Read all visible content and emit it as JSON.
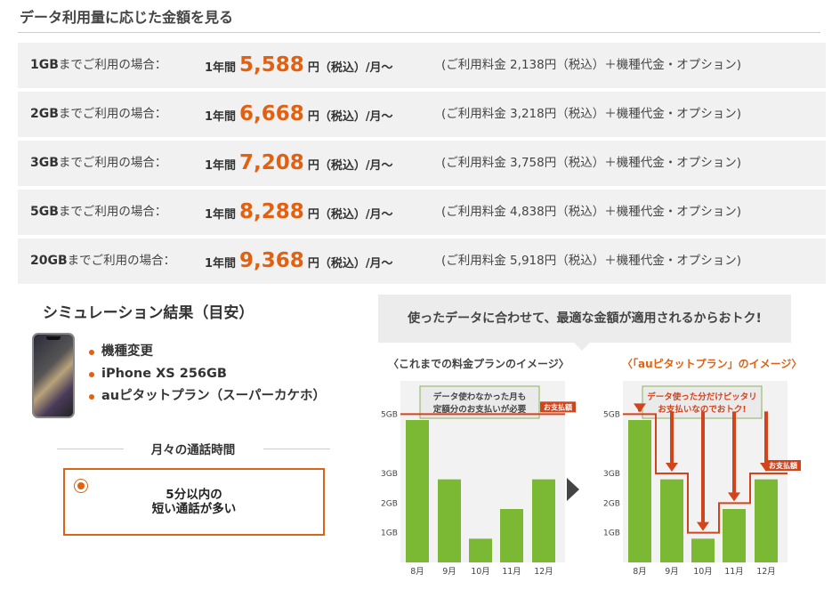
{
  "section_title": "データ利用量に応じた金額を見る",
  "price_rows": [
    {
      "gb": "1GB",
      "label_suffix": "までご利用の場合：",
      "year": "1年間",
      "amount": "5,588",
      "unit": "円（税込）/月〜",
      "detail": "(ご利用料金 2,138円（税込）＋機種代金・オプション)"
    },
    {
      "gb": "2GB",
      "label_suffix": "までご利用の場合：",
      "year": "1年間",
      "amount": "6,668",
      "unit": "円（税込）/月〜",
      "detail": "(ご利用料金 3,218円（税込）＋機種代金・オプション)"
    },
    {
      "gb": "3GB",
      "label_suffix": "までご利用の場合：",
      "year": "1年間",
      "amount": "7,208",
      "unit": "円（税込）/月〜",
      "detail": "(ご利用料金 3,758円（税込）＋機種代金・オプション)"
    },
    {
      "gb": "5GB",
      "label_suffix": "までご利用の場合：",
      "year": "1年間",
      "amount": "8,288",
      "unit": "円（税込）/月〜",
      "detail": "(ご利用料金 4,838円（税込）＋機種代金・オプション)"
    },
    {
      "gb": "20GB",
      "label_suffix": "までご利用の場合：",
      "year": "1年間",
      "amount": "9,368",
      "unit": "円（税込）/月〜",
      "detail": "(ご利用料金 5,918円（税込）＋機種代金・オプション)"
    }
  ],
  "simulation": {
    "title": "シミュレーション結果（目安）",
    "items": [
      "機種変更",
      "iPhone XS 256GB",
      "auピタットプラン（スーパーカケホ）"
    ]
  },
  "call_time": {
    "title": "月々の通話時間",
    "option_line1": "5分以内の",
    "option_line2": "短い通話が多い"
  },
  "banner_text": "使ったデータに合わせて、最適な金額が適用されるからおトク!",
  "chart_data": [
    {
      "type": "bar",
      "title": "〈これまでの料金プランのイメージ〉",
      "callout": [
        "データ使わなかった月も",
        "定額分のお支払いが必要"
      ],
      "payment_label": "お支払額",
      "y_ticks": [
        "5GB",
        "3GB",
        "2GB",
        "1GB"
      ],
      "categories": [
        "8月",
        "9月",
        "10月",
        "11月",
        "12月"
      ],
      "values": [
        4.8,
        2.8,
        0.8,
        1.8,
        2.8
      ],
      "ylim": [
        0,
        6
      ],
      "payment_level": 5,
      "bar_color": "#7bb934"
    },
    {
      "type": "bar",
      "title": "〈「auピタットプラン」のイメージ〉",
      "callout": [
        "データ使った分だけピッタリ",
        "お支払いなのでおトク!"
      ],
      "payment_label": "お支払額",
      "y_ticks": [
        "5GB",
        "3GB",
        "2GB",
        "1GB"
      ],
      "categories": [
        "8月",
        "9月",
        "10月",
        "11月",
        "12月"
      ],
      "values": [
        4.8,
        2.8,
        0.8,
        1.8,
        2.8
      ],
      "ylim": [
        0,
        6
      ],
      "payment_levels": [
        5,
        3,
        1,
        2,
        3
      ],
      "bar_color": "#7bb934"
    }
  ],
  "colors": {
    "accent": "#e2600f",
    "bar": "#7bb934",
    "line": "#d2441c"
  }
}
